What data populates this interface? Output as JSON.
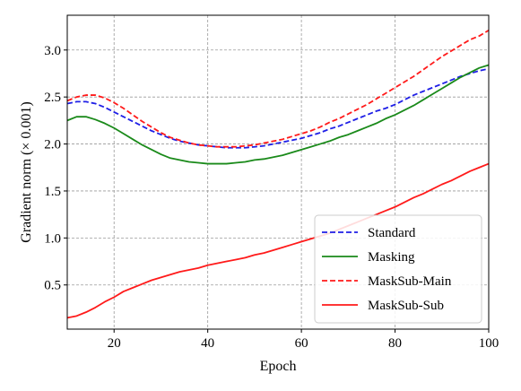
{
  "chart_data": {
    "type": "line",
    "title": "",
    "xlabel": "Epoch",
    "ylabel": "Gradient norm (× 0.001)",
    "xlim": [
      10,
      100
    ],
    "ylim": [
      0.03,
      3.37
    ],
    "xticks": [
      20,
      40,
      60,
      80,
      100
    ],
    "yticks": [
      0.5,
      1.0,
      1.5,
      2.0,
      2.5,
      3.0
    ],
    "xtick_labels": [
      "20",
      "40",
      "60",
      "80",
      "100"
    ],
    "ytick_labels": [
      "0.5",
      "1.0",
      "1.5",
      "2.0",
      "2.5",
      "3.0"
    ],
    "grid": true,
    "legend_position": "lower-right",
    "x": [
      10,
      12,
      14,
      16,
      18,
      20,
      22,
      24,
      26,
      28,
      30,
      32,
      34,
      36,
      38,
      40,
      42,
      44,
      46,
      48,
      50,
      52,
      54,
      56,
      58,
      60,
      62,
      64,
      66,
      68,
      70,
      72,
      74,
      76,
      78,
      80,
      82,
      84,
      86,
      88,
      90,
      92,
      94,
      96,
      98,
      100
    ],
    "series": [
      {
        "name": "Standard",
        "color": "#1f1fe6",
        "dash": "dashed",
        "values": [
          2.43,
          2.45,
          2.45,
          2.43,
          2.39,
          2.34,
          2.29,
          2.24,
          2.19,
          2.14,
          2.1,
          2.06,
          2.03,
          2.01,
          1.99,
          1.98,
          1.97,
          1.96,
          1.96,
          1.96,
          1.97,
          1.98,
          2.0,
          2.02,
          2.04,
          2.06,
          2.09,
          2.12,
          2.16,
          2.19,
          2.23,
          2.27,
          2.31,
          2.35,
          2.38,
          2.42,
          2.47,
          2.52,
          2.56,
          2.6,
          2.64,
          2.68,
          2.72,
          2.75,
          2.78,
          2.8
        ]
      },
      {
        "name": "Masking",
        "color": "#1a8a1a",
        "dash": "solid",
        "values": [
          2.25,
          2.29,
          2.29,
          2.26,
          2.22,
          2.17,
          2.11,
          2.05,
          1.99,
          1.94,
          1.89,
          1.85,
          1.83,
          1.81,
          1.8,
          1.79,
          1.79,
          1.79,
          1.8,
          1.81,
          1.83,
          1.84,
          1.86,
          1.88,
          1.91,
          1.94,
          1.97,
          2.0,
          2.03,
          2.07,
          2.1,
          2.14,
          2.18,
          2.22,
          2.27,
          2.31,
          2.36,
          2.41,
          2.47,
          2.53,
          2.59,
          2.65,
          2.71,
          2.76,
          2.81,
          2.84
        ]
      },
      {
        "name": "MaskSub-Main",
        "color": "#ff1a1a",
        "dash": "dashed",
        "values": [
          2.46,
          2.5,
          2.52,
          2.52,
          2.49,
          2.44,
          2.38,
          2.31,
          2.24,
          2.18,
          2.12,
          2.07,
          2.04,
          2.01,
          1.99,
          1.98,
          1.97,
          1.97,
          1.97,
          1.98,
          1.99,
          2.01,
          2.03,
          2.05,
          2.08,
          2.11,
          2.14,
          2.18,
          2.23,
          2.27,
          2.32,
          2.37,
          2.42,
          2.48,
          2.54,
          2.6,
          2.66,
          2.72,
          2.79,
          2.86,
          2.93,
          2.99,
          3.05,
          3.11,
          3.15,
          3.21
        ]
      },
      {
        "name": "MaskSub-Sub",
        "color": "#ff1a1a",
        "dash": "solid",
        "values": [
          0.15,
          0.17,
          0.21,
          0.26,
          0.32,
          0.37,
          0.43,
          0.47,
          0.51,
          0.55,
          0.58,
          0.61,
          0.64,
          0.66,
          0.68,
          0.71,
          0.73,
          0.75,
          0.77,
          0.79,
          0.82,
          0.84,
          0.87,
          0.9,
          0.93,
          0.96,
          0.99,
          1.02,
          1.05,
          1.09,
          1.13,
          1.17,
          1.21,
          1.25,
          1.29,
          1.33,
          1.38,
          1.43,
          1.47,
          1.52,
          1.57,
          1.61,
          1.66,
          1.71,
          1.75,
          1.79
        ]
      }
    ]
  }
}
